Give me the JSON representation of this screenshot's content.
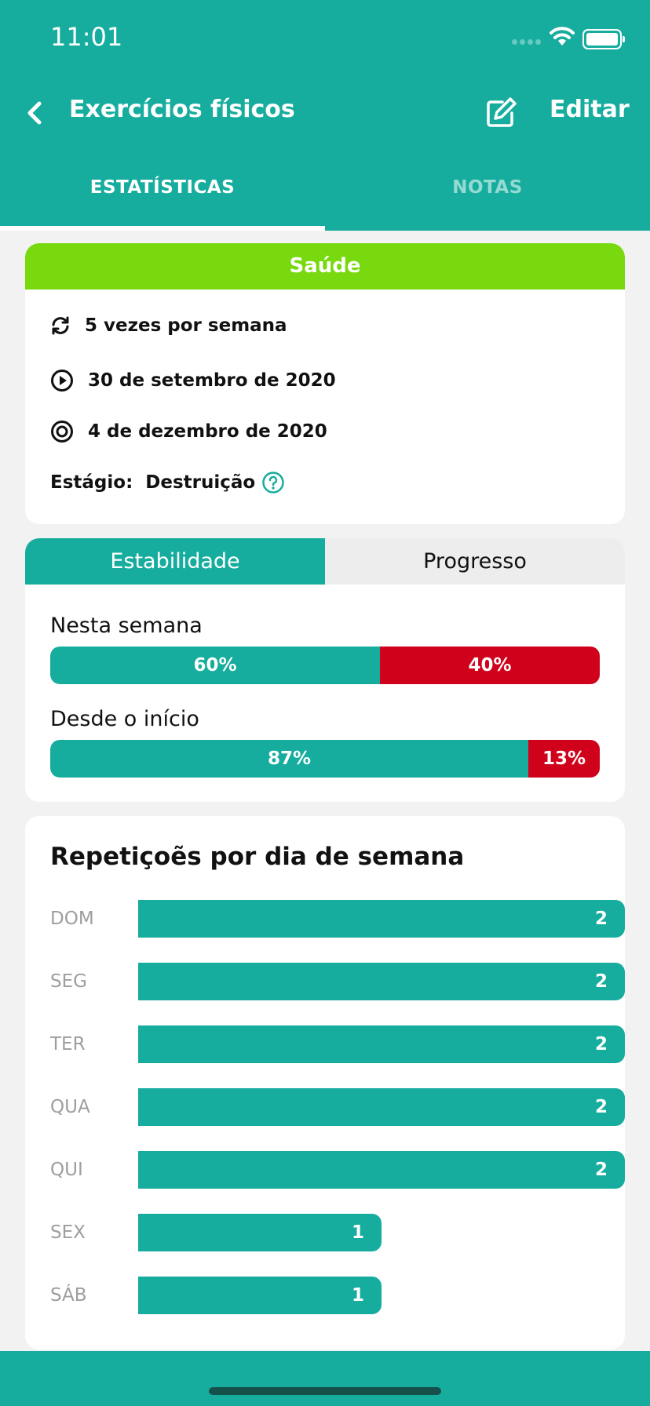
{
  "status_bar": {
    "time": "11:01"
  },
  "header": {
    "title": "Exercícios físicos",
    "edit_label": "Editar"
  },
  "tabs": [
    {
      "label": "ESTATÍSTICAS",
      "active": true
    },
    {
      "label": "NOTAS",
      "active": false
    }
  ],
  "info": {
    "category": "Saúde",
    "category_color": "#79d90f",
    "frequency": "5 vezes por semana",
    "start_date": "30 de setembro de 2020",
    "target_date": "4 de dezembro de 2020",
    "stage_label": "Estágio:",
    "stage_value": "Destruição"
  },
  "stability": {
    "segments": [
      {
        "label": "Estabilidade",
        "active": true
      },
      {
        "label": "Progresso",
        "active": false
      }
    ],
    "this_week": {
      "label": "Nesta semana",
      "success": 60,
      "fail": 40,
      "success_text": "60%",
      "fail_text": "40%"
    },
    "since_start": {
      "label": "Desde o início",
      "success": 87,
      "fail": 13,
      "success_text": "87%",
      "fail_text": "13%"
    }
  },
  "chart_data": {
    "type": "bar",
    "title": "Repetiçoẽs por dia de semana",
    "categories": [
      "DOM",
      "SEG",
      "TER",
      "QUA",
      "QUI",
      "SEX",
      "SÁB"
    ],
    "values": [
      2,
      2,
      2,
      2,
      2,
      1,
      1
    ]
  },
  "colors": {
    "accent": "#16ad9e",
    "fail": "#d0021b",
    "category": "#79d90f"
  }
}
